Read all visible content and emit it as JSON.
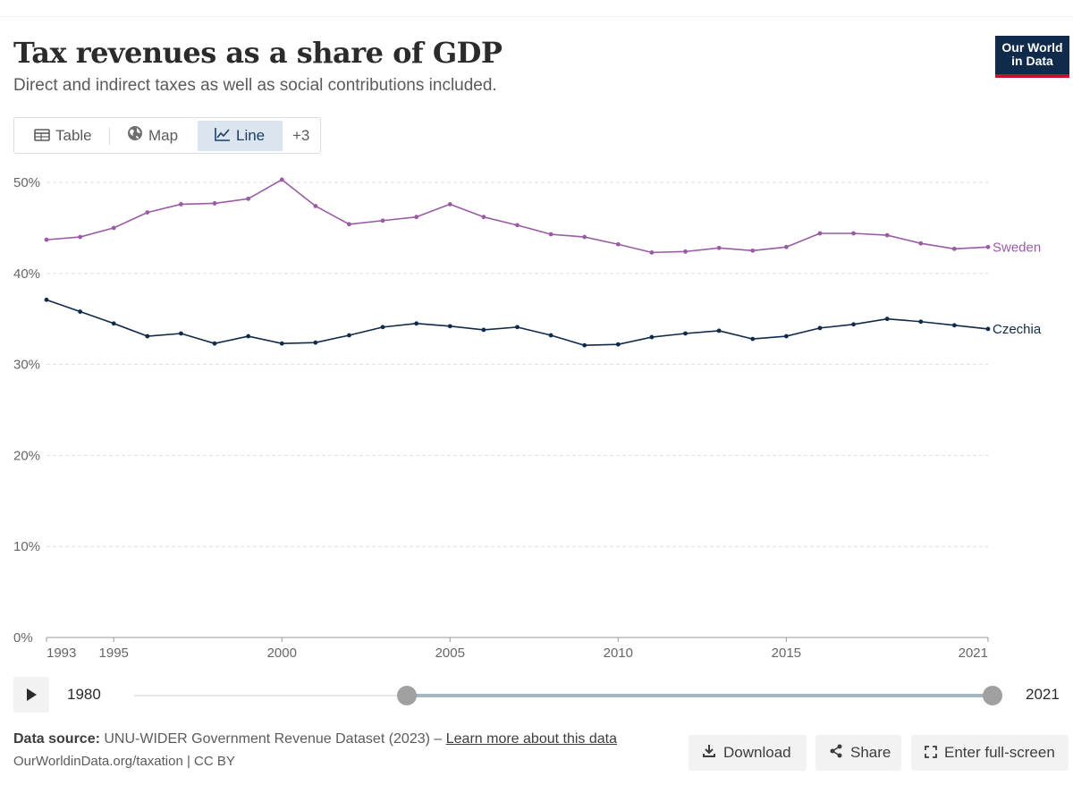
{
  "header": {
    "title": "Tax revenues as a share of GDP",
    "subtitle": "Direct and indirect taxes as well as social contributions included.",
    "logo_line1": "Our World",
    "logo_line2": "in Data"
  },
  "tabs": [
    {
      "label": "Table",
      "icon": "table-icon"
    },
    {
      "label": "Map",
      "icon": "globe-icon"
    },
    {
      "label": "Line",
      "icon": "line-chart-icon",
      "active": true
    },
    {
      "label": "+3"
    }
  ],
  "colors": {
    "sweden": "#9a5ba5",
    "czechia": "#0f2a4a",
    "active_tab_bg": "#dbe5f0",
    "logo_bg": "#0f2a4a",
    "logo_accent": "#c8102e"
  },
  "chart_data": {
    "type": "line",
    "title": "Tax revenues as a share of GDP",
    "xlabel": "",
    "ylabel": "",
    "ylim": [
      0,
      50
    ],
    "y_ticks": [
      "0%",
      "10%",
      "20%",
      "30%",
      "40%",
      "50%"
    ],
    "x_ticks": [
      "1993",
      "1995",
      "2000",
      "2005",
      "2010",
      "2015",
      "2021"
    ],
    "grid": "horizontal dashed",
    "legend": "inline labels at line ends",
    "x": [
      1993,
      1994,
      1995,
      1996,
      1997,
      1998,
      1999,
      2000,
      2001,
      2002,
      2003,
      2004,
      2005,
      2006,
      2007,
      2008,
      2009,
      2010,
      2011,
      2012,
      2013,
      2014,
      2015,
      2016,
      2017,
      2018,
      2019,
      2020,
      2021
    ],
    "series": [
      {
        "name": "Sweden",
        "values": [
          43.7,
          44.0,
          45.0,
          46.7,
          47.6,
          47.7,
          48.2,
          50.3,
          47.4,
          45.4,
          45.8,
          46.2,
          47.6,
          46.2,
          45.3,
          44.3,
          44.0,
          43.2,
          42.3,
          42.4,
          42.8,
          42.5,
          42.9,
          44.4,
          44.4,
          44.2,
          43.3,
          42.7,
          42.9
        ]
      },
      {
        "name": "Czechia",
        "values": [
          37.1,
          35.8,
          34.5,
          33.1,
          33.4,
          32.3,
          33.1,
          32.3,
          32.4,
          33.2,
          34.1,
          34.5,
          34.2,
          33.8,
          34.1,
          33.2,
          32.1,
          32.2,
          33.0,
          33.4,
          33.7,
          32.8,
          33.1,
          34.0,
          34.4,
          35.0,
          34.7,
          34.3,
          33.9
        ]
      }
    ]
  },
  "timeline": {
    "start_year": "1980",
    "end_year": "2021",
    "range_start": 0.32,
    "range_end": 1.0
  },
  "footer": {
    "source_label": "Data source:",
    "source_text": "UNU-WIDER Government Revenue Dataset (2023) –",
    "learn_more": "Learn more about this data",
    "url_text": "OurWorldinData.org/taxation | CC BY",
    "download_label": "Download",
    "share_label": "Share",
    "fullscreen_label": "Enter full-screen"
  }
}
